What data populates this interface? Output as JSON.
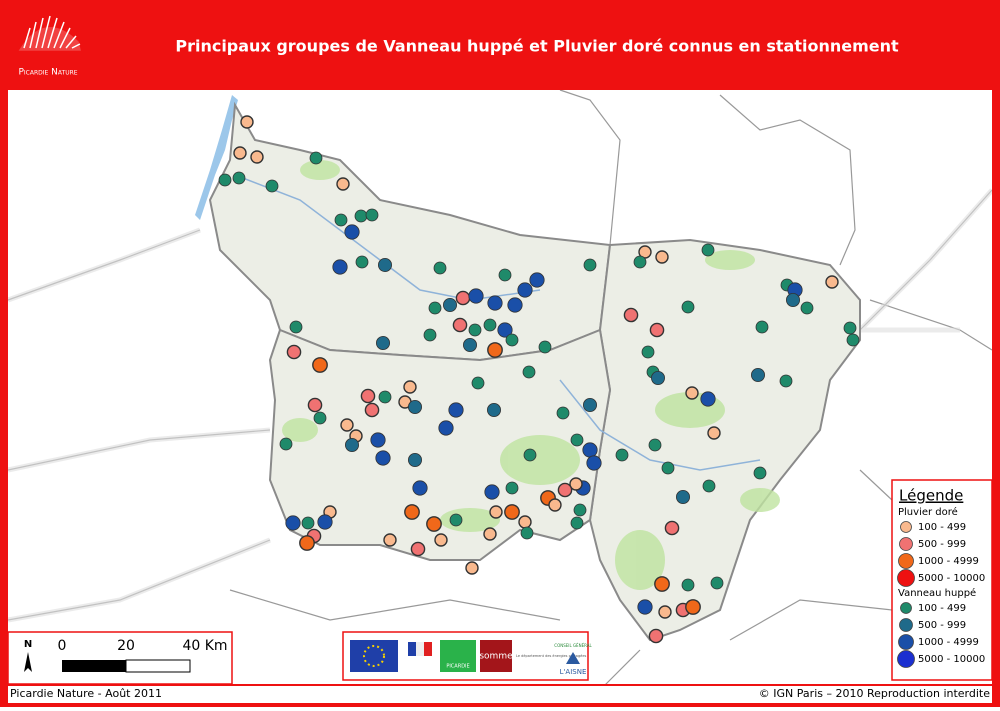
{
  "header": {
    "title": "Principaux groupes de Vanneau huppé et Pluvier doré connus en stationnement",
    "logo_text": "Picardie Nature"
  },
  "legend": {
    "title": "Légende",
    "groups": [
      {
        "name": "Pluvier doré",
        "items": [
          {
            "label": "100 - 499",
            "color": "#f9b98e"
          },
          {
            "label": "500 - 999",
            "color": "#f07272"
          },
          {
            "label": "1000 - 4999",
            "color": "#f0681a"
          },
          {
            "label": "5000 - 10000",
            "color": "#ee1111"
          }
        ]
      },
      {
        "name": "Vanneau huppé",
        "items": [
          {
            "label": "100 - 499",
            "color": "#1f8a6a"
          },
          {
            "label": "500 - 999",
            "color": "#1f6a8a"
          },
          {
            "label": "1000 - 4999",
            "color": "#1a4fa8"
          },
          {
            "label": "5000 - 10000",
            "color": "#1b2fd0"
          }
        ]
      }
    ]
  },
  "scale": {
    "north": "N",
    "labels": [
      "0",
      "20",
      "40 Km"
    ]
  },
  "logos": {
    "picardie": "PICARDIE",
    "somme": "somme",
    "somme_tagline": "Le département des énergies partagées",
    "aisne_top": "CONSEIL GÉNÉRAL",
    "aisne": "L'AISNE"
  },
  "footer": {
    "left": "Picardie Nature - Août 2011",
    "right": "© IGN Paris – 2010 Reproduction interdite"
  }
}
